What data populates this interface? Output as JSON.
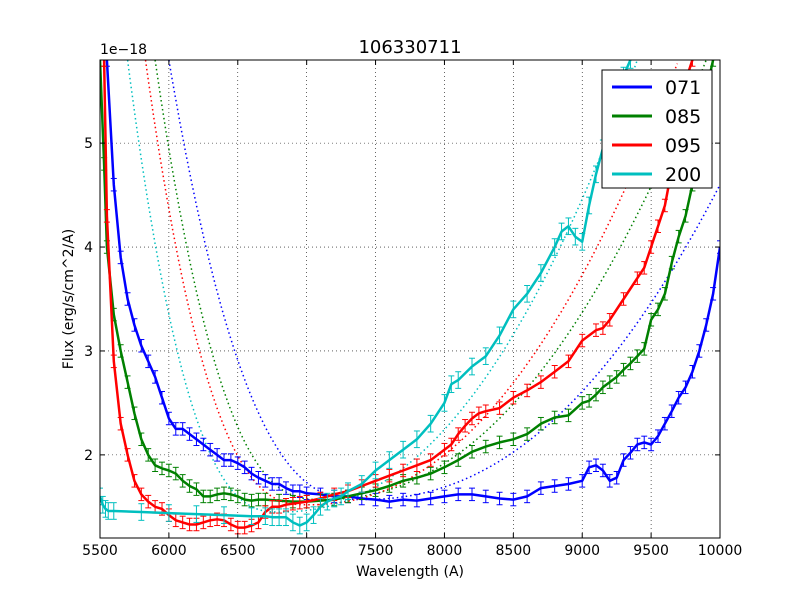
{
  "chart_data": {
    "type": "line",
    "title": "106330711",
    "xlabel": "Wavelength (A)",
    "ylabel": "Flux (erg/s/cm^2/A)",
    "offset_text": "1e−18",
    "xlim": [
      5500,
      10000
    ],
    "ylim": [
      1.2,
      5.8
    ],
    "x_ticks": [
      5500,
      6000,
      6500,
      7000,
      7500,
      8000,
      8500,
      9000,
      9500,
      10000
    ],
    "y_ticks": [
      2,
      3,
      4,
      5
    ],
    "grid": true,
    "legend_position": "top-right",
    "series": [
      {
        "name": "071",
        "color": "#0000ff",
        "x": [
          5550,
          5600,
          5650,
          5700,
          5750,
          5800,
          5850,
          5900,
          5950,
          6000,
          6050,
          6100,
          6150,
          6200,
          6250,
          6300,
          6350,
          6400,
          6450,
          6500,
          6550,
          6600,
          6650,
          6700,
          6750,
          6800,
          6850,
          6900,
          6950,
          7000,
          7100,
          7200,
          7300,
          7400,
          7500,
          7600,
          7700,
          7800,
          7900,
          8000,
          8100,
          8200,
          8300,
          8400,
          8500,
          8600,
          8700,
          8800,
          8900,
          9000,
          9050,
          9100,
          9150,
          9200,
          9250,
          9300,
          9350,
          9400,
          9450,
          9500,
          9550,
          9600,
          9650,
          9700,
          9750,
          9800,
          9850,
          9900,
          9950,
          10000
        ],
        "y": [
          5.8,
          4.6,
          3.9,
          3.5,
          3.25,
          3.05,
          2.9,
          2.75,
          2.55,
          2.35,
          2.25,
          2.25,
          2.2,
          2.15,
          2.1,
          2.05,
          2.0,
          1.95,
          1.95,
          1.92,
          1.88,
          1.82,
          1.78,
          1.75,
          1.72,
          1.72,
          1.68,
          1.65,
          1.65,
          1.63,
          1.62,
          1.6,
          1.6,
          1.58,
          1.57,
          1.55,
          1.57,
          1.56,
          1.58,
          1.6,
          1.62,
          1.62,
          1.6,
          1.58,
          1.57,
          1.6,
          1.68,
          1.7,
          1.72,
          1.75,
          1.88,
          1.9,
          1.85,
          1.75,
          1.78,
          1.95,
          2.02,
          2.1,
          2.12,
          2.1,
          2.18,
          2.3,
          2.42,
          2.55,
          2.65,
          2.8,
          3.0,
          3.25,
          3.55,
          4.0
        ],
        "error": 0.06
      },
      {
        "name": "085",
        "color": "#008000",
        "x": [
          5500,
          5530,
          5550,
          5600,
          5650,
          5700,
          5750,
          5800,
          5850,
          5900,
          5950,
          6000,
          6050,
          6100,
          6150,
          6200,
          6250,
          6300,
          6350,
          6400,
          6450,
          6500,
          6550,
          6600,
          6650,
          6700,
          6800,
          6900,
          7000,
          7100,
          7200,
          7300,
          7400,
          7500,
          7600,
          7700,
          7800,
          7900,
          8000,
          8100,
          8200,
          8300,
          8400,
          8500,
          8600,
          8700,
          8800,
          8900,
          9000,
          9050,
          9100,
          9150,
          9200,
          9250,
          9300,
          9350,
          9400,
          9450,
          9500,
          9550,
          9600,
          9650,
          9700,
          9750,
          9800,
          9850,
          9900,
          9950
        ],
        "y": [
          5.8,
          4.8,
          4.0,
          3.35,
          3.0,
          2.7,
          2.4,
          2.15,
          2.0,
          1.9,
          1.87,
          1.85,
          1.82,
          1.75,
          1.7,
          1.67,
          1.6,
          1.6,
          1.62,
          1.63,
          1.62,
          1.6,
          1.57,
          1.56,
          1.57,
          1.57,
          1.56,
          1.55,
          1.55,
          1.56,
          1.57,
          1.6,
          1.63,
          1.66,
          1.7,
          1.75,
          1.78,
          1.82,
          1.88,
          1.95,
          2.03,
          2.08,
          2.12,
          2.15,
          2.2,
          2.3,
          2.36,
          2.38,
          2.5,
          2.52,
          2.58,
          2.65,
          2.7,
          2.75,
          2.82,
          2.88,
          2.95,
          3.02,
          3.3,
          3.4,
          3.55,
          3.85,
          4.1,
          4.3,
          4.6,
          5.0,
          5.5,
          5.8
        ],
        "error": 0.06
      },
      {
        "name": "095",
        "color": "#ff0000",
        "x": [
          5530,
          5550,
          5600,
          5650,
          5700,
          5750,
          5800,
          5850,
          5900,
          5950,
          6000,
          6050,
          6100,
          6150,
          6200,
          6250,
          6300,
          6350,
          6400,
          6450,
          6500,
          6550,
          6600,
          6650,
          6700,
          6750,
          6800,
          6850,
          6900,
          6950,
          7000,
          7100,
          7200,
          7300,
          7400,
          7500,
          7600,
          7700,
          7800,
          7900,
          8000,
          8050,
          8100,
          8150,
          8200,
          8250,
          8300,
          8400,
          8500,
          8600,
          8700,
          8800,
          8900,
          9000,
          9100,
          9150,
          9200,
          9300,
          9400,
          9450,
          9500,
          9550,
          9600,
          9650,
          9700,
          9750,
          9800
        ],
        "y": [
          5.8,
          4.3,
          2.9,
          2.3,
          2.0,
          1.75,
          1.62,
          1.55,
          1.5,
          1.48,
          1.42,
          1.37,
          1.35,
          1.33,
          1.33,
          1.35,
          1.37,
          1.38,
          1.37,
          1.33,
          1.3,
          1.3,
          1.32,
          1.35,
          1.45,
          1.5,
          1.5,
          1.52,
          1.53,
          1.54,
          1.55,
          1.58,
          1.62,
          1.65,
          1.7,
          1.75,
          1.8,
          1.85,
          1.9,
          1.95,
          2.05,
          2.1,
          2.2,
          2.28,
          2.35,
          2.4,
          2.42,
          2.45,
          2.55,
          2.62,
          2.7,
          2.8,
          2.9,
          3.1,
          3.2,
          3.22,
          3.3,
          3.5,
          3.7,
          3.8,
          4.0,
          4.2,
          4.4,
          4.75,
          5.2,
          5.6,
          5.8
        ],
        "error": 0.06
      },
      {
        "name": "200",
        "color": "#00bfbf",
        "x": [
          5500,
          5520,
          5540,
          5560,
          5600,
          5800,
          6000,
          6200,
          6400,
          6600,
          6700,
          6750,
          6800,
          6850,
          6900,
          6950,
          7000,
          7050,
          7100,
          7150,
          7200,
          7250,
          7300,
          7400,
          7500,
          7600,
          7700,
          7800,
          7900,
          8000,
          8050,
          8100,
          8200,
          8300,
          8400,
          8500,
          8600,
          8700,
          8800,
          8850,
          8900,
          8950,
          9000,
          9050,
          9100,
          9150,
          9200,
          9250,
          9300,
          9350
        ],
        "y": [
          1.6,
          1.52,
          1.48,
          1.46,
          1.46,
          1.45,
          1.44,
          1.43,
          1.42,
          1.41,
          1.41,
          1.4,
          1.4,
          1.4,
          1.35,
          1.32,
          1.35,
          1.42,
          1.5,
          1.55,
          1.58,
          1.6,
          1.65,
          1.72,
          1.85,
          1.95,
          2.05,
          2.15,
          2.3,
          2.5,
          2.68,
          2.72,
          2.85,
          2.95,
          3.15,
          3.4,
          3.55,
          3.75,
          4.0,
          4.15,
          4.2,
          4.1,
          4.05,
          4.4,
          4.7,
          4.95,
          5.2,
          5.45,
          5.65,
          5.8
        ],
        "error": 0.08
      }
    ],
    "fit_series": [
      {
        "name": "071",
        "color": "#0000ff",
        "x0": 6000,
        "y0": 5.8,
        "x_min": 7400,
        "y_min": 1.57,
        "x1": 10000,
        "y1": 4.6
      },
      {
        "name": "085",
        "color": "#008000",
        "x0": 5900,
        "y0": 5.8,
        "x_min": 7100,
        "y_min": 1.57,
        "x1": 9900,
        "y1": 5.8
      },
      {
        "name": "095",
        "color": "#ff0000",
        "x0": 5830,
        "y0": 5.8,
        "x_min": 7000,
        "y_min": 1.52,
        "x1": 9700,
        "y1": 5.8
      },
      {
        "name": "200",
        "color": "#00bfbf",
        "x0": 5700,
        "y0": 5.8,
        "x_min": 6800,
        "y_min": 1.45,
        "x1": 9400,
        "y1": 5.8
      }
    ]
  }
}
